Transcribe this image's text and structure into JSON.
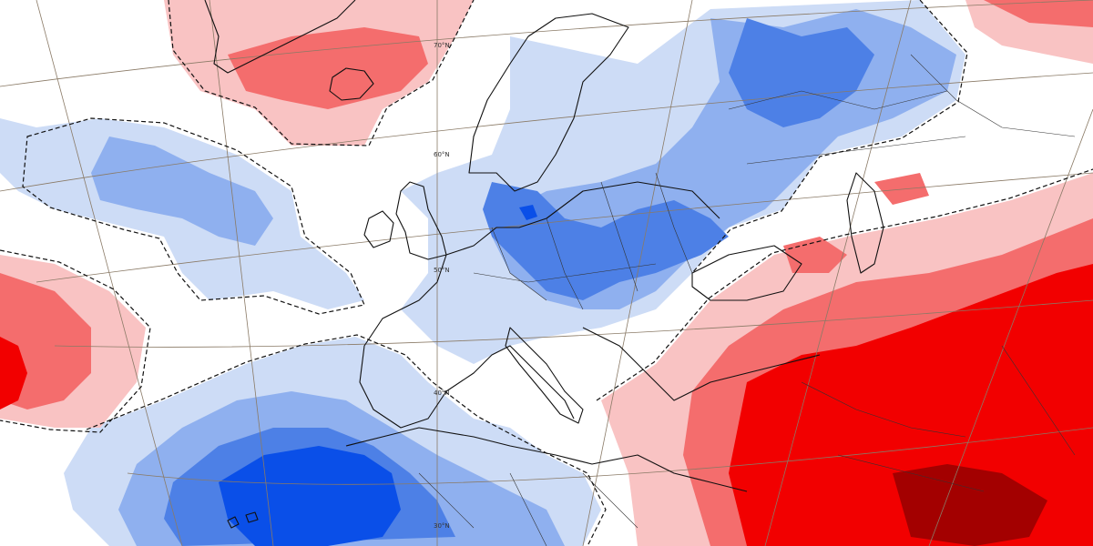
{
  "map": {
    "type": "temperature anomaly map",
    "region": "Europe, North Atlantic, North Africa, Middle East",
    "projection": "conic",
    "graticule": true,
    "coastlines": true,
    "country_borders": true,
    "dashed_zero_contour": true,
    "colors": {
      "background": "#ffffff",
      "blue_light": "#cddcf6",
      "blue_medium": "#8fb0ef",
      "blue_strong": "#4d80e6",
      "blue_deep": "#0a4fe8",
      "red_light": "#f9c3c3",
      "red_medium": "#f46d6d",
      "red_strong": "#f20000",
      "red_deep": "#a30000",
      "coastline": "#111111",
      "graticule": "#8a7a66"
    },
    "latitude_labels": [
      {
        "text": "70°N"
      },
      {
        "text": "60°N"
      },
      {
        "text": "50°N"
      },
      {
        "text": "40°N"
      },
      {
        "text": "30°N"
      }
    ]
  }
}
